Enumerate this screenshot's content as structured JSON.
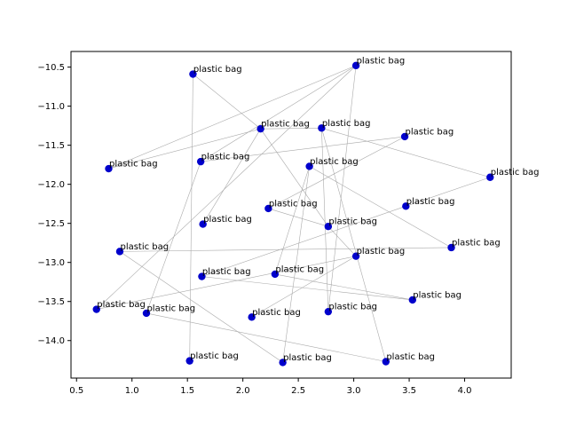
{
  "chart_data": {
    "type": "scatter",
    "title": "",
    "xlabel": "",
    "ylabel": "",
    "xlim": [
      0.45,
      4.42
    ],
    "ylim": [
      -14.48,
      -10.3
    ],
    "xticks": [
      0.5,
      1.0,
      1.5,
      2.0,
      2.5,
      3.0,
      3.5,
      4.0
    ],
    "yticks": [
      -10.5,
      -11.0,
      -11.5,
      -12.0,
      -12.5,
      -13.0,
      -13.5,
      -14.0
    ],
    "xtick_labels": [
      "0.5",
      "1.0",
      "1.5",
      "2.0",
      "2.5",
      "3.0",
      "3.5",
      "4.0"
    ],
    "ytick_labels": [
      "−10.5",
      "−11.0",
      "−11.5",
      "−12.0",
      "−12.5",
      "−13.0",
      "−13.5",
      "−14.0"
    ],
    "grid": false,
    "marker_color": "#0000cc",
    "line_color": "#aaaaaa",
    "points": [
      {
        "x": 1.55,
        "y": -10.59,
        "label": "plastic bag"
      },
      {
        "x": 3.02,
        "y": -10.48,
        "label": "plastic bag"
      },
      {
        "x": 2.16,
        "y": -11.29,
        "label": "plastic bag"
      },
      {
        "x": 2.71,
        "y": -11.28,
        "label": "plastic bag"
      },
      {
        "x": 3.46,
        "y": -11.39,
        "label": "plastic bag"
      },
      {
        "x": 0.79,
        "y": -11.8,
        "label": "plastic bag"
      },
      {
        "x": 1.62,
        "y": -11.71,
        "label": "plastic bag"
      },
      {
        "x": 2.6,
        "y": -11.77,
        "label": "plastic bag"
      },
      {
        "x": 4.23,
        "y": -11.91,
        "label": "plastic bag"
      },
      {
        "x": 2.23,
        "y": -12.31,
        "label": "plastic bag"
      },
      {
        "x": 3.47,
        "y": -12.28,
        "label": "plastic bag"
      },
      {
        "x": 1.64,
        "y": -12.51,
        "label": "plastic bag"
      },
      {
        "x": 2.77,
        "y": -12.54,
        "label": "plastic bag"
      },
      {
        "x": 0.89,
        "y": -12.86,
        "label": "plastic bag"
      },
      {
        "x": 3.88,
        "y": -12.81,
        "label": "plastic bag"
      },
      {
        "x": 3.02,
        "y": -12.92,
        "label": "plastic bag"
      },
      {
        "x": 1.63,
        "y": -13.18,
        "label": "plastic bag"
      },
      {
        "x": 2.29,
        "y": -13.15,
        "label": "plastic bag"
      },
      {
        "x": 0.68,
        "y": -13.6,
        "label": "plastic bag"
      },
      {
        "x": 1.13,
        "y": -13.65,
        "label": "plastic bag"
      },
      {
        "x": 3.53,
        "y": -13.48,
        "label": "plastic bag"
      },
      {
        "x": 2.08,
        "y": -13.7,
        "label": "plastic bag"
      },
      {
        "x": 2.77,
        "y": -13.63,
        "label": "plastic bag"
      },
      {
        "x": 1.52,
        "y": -14.26,
        "label": "plastic bag"
      },
      {
        "x": 2.36,
        "y": -14.28,
        "label": "plastic bag"
      },
      {
        "x": 3.29,
        "y": -14.27,
        "label": "plastic bag"
      }
    ],
    "connections": [
      [
        0,
        2
      ],
      [
        0,
        23
      ],
      [
        1,
        5
      ],
      [
        1,
        18
      ],
      [
        1,
        22
      ],
      [
        2,
        11
      ],
      [
        2,
        3
      ],
      [
        2,
        12
      ],
      [
        3,
        8
      ],
      [
        3,
        25
      ],
      [
        4,
        6
      ],
      [
        4,
        9
      ],
      [
        5,
        2
      ],
      [
        6,
        19
      ],
      [
        7,
        14
      ],
      [
        7,
        24
      ],
      [
        9,
        12
      ],
      [
        10,
        8
      ],
      [
        10,
        16
      ],
      [
        12,
        15
      ],
      [
        13,
        14
      ],
      [
        13,
        24
      ],
      [
        15,
        18
      ],
      [
        17,
        20
      ],
      [
        17,
        7
      ],
      [
        19,
        25
      ],
      [
        20,
        16
      ],
      [
        21,
        15
      ],
      [
        3,
        22
      ],
      [
        1,
        6
      ]
    ]
  }
}
